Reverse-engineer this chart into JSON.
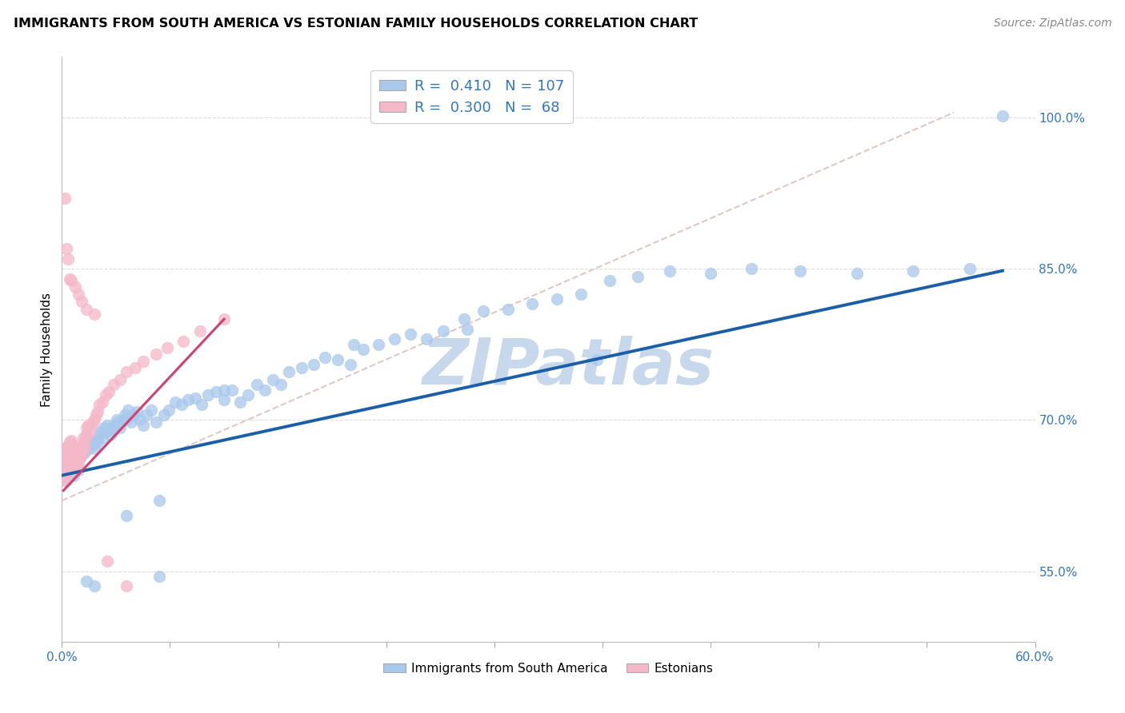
{
  "title": "IMMIGRANTS FROM SOUTH AMERICA VS ESTONIAN FAMILY HOUSEHOLDS CORRELATION CHART",
  "source": "Source: ZipAtlas.com",
  "xlim": [
    0.0,
    0.6
  ],
  "ylim": [
    0.48,
    1.06
  ],
  "r_blue": 0.41,
  "n_blue": 107,
  "r_pink": 0.3,
  "n_pink": 68,
  "blue_color": "#A8C8EC",
  "pink_color": "#F5B8C8",
  "trend_blue": "#1A5FA8",
  "trend_pink": "#D04070",
  "ref_line_color": "#E0C8C8",
  "watermark": "ZIPatlas",
  "watermark_color": "#C8D8EC",
  "legend_label_blue": "Immigrants from South America",
  "legend_label_pink": "Estonians",
  "ylabel_tick_values": [
    0.55,
    0.7,
    0.85,
    1.0
  ],
  "ylabel_ticks": [
    "55.0%",
    "70.0%",
    "85.0%",
    "100.0%"
  ],
  "blue_scatter_x": [
    0.001,
    0.002,
    0.003,
    0.003,
    0.004,
    0.005,
    0.005,
    0.006,
    0.007,
    0.007,
    0.008,
    0.009,
    0.01,
    0.01,
    0.011,
    0.012,
    0.013,
    0.014,
    0.015,
    0.015,
    0.016,
    0.017,
    0.018,
    0.019,
    0.02,
    0.021,
    0.022,
    0.023,
    0.024,
    0.025,
    0.026,
    0.027,
    0.028,
    0.029,
    0.03,
    0.031,
    0.032,
    0.033,
    0.034,
    0.035,
    0.036,
    0.038,
    0.039,
    0.04,
    0.041,
    0.043,
    0.044,
    0.046,
    0.048,
    0.05,
    0.052,
    0.055,
    0.058,
    0.06,
    0.063,
    0.066,
    0.07,
    0.074,
    0.078,
    0.082,
    0.086,
    0.09,
    0.095,
    0.1,
    0.105,
    0.11,
    0.115,
    0.12,
    0.125,
    0.13,
    0.135,
    0.14,
    0.148,
    0.155,
    0.162,
    0.17,
    0.178,
    0.186,
    0.195,
    0.205,
    0.215,
    0.225,
    0.235,
    0.248,
    0.26,
    0.275,
    0.29,
    0.305,
    0.32,
    0.338,
    0.355,
    0.375,
    0.4,
    0.425,
    0.455,
    0.49,
    0.525,
    0.56,
    0.33,
    0.25,
    0.18,
    0.1,
    0.06,
    0.04,
    0.02,
    0.015,
    0.58
  ],
  "blue_scatter_y": [
    0.66,
    0.65,
    0.665,
    0.64,
    0.655,
    0.66,
    0.648,
    0.662,
    0.658,
    0.645,
    0.67,
    0.655,
    0.668,
    0.65,
    0.672,
    0.665,
    0.67,
    0.668,
    0.675,
    0.685,
    0.672,
    0.678,
    0.68,
    0.675,
    0.672,
    0.68,
    0.678,
    0.685,
    0.688,
    0.682,
    0.692,
    0.688,
    0.695,
    0.69,
    0.685,
    0.692,
    0.69,
    0.695,
    0.7,
    0.698,
    0.692,
    0.7,
    0.705,
    0.7,
    0.71,
    0.698,
    0.705,
    0.708,
    0.7,
    0.695,
    0.705,
    0.71,
    0.698,
    0.62,
    0.705,
    0.71,
    0.718,
    0.715,
    0.72,
    0.722,
    0.715,
    0.725,
    0.728,
    0.72,
    0.73,
    0.718,
    0.725,
    0.735,
    0.73,
    0.74,
    0.735,
    0.748,
    0.752,
    0.755,
    0.762,
    0.76,
    0.755,
    0.77,
    0.775,
    0.78,
    0.785,
    0.78,
    0.788,
    0.8,
    0.808,
    0.81,
    0.815,
    0.82,
    0.825,
    0.838,
    0.842,
    0.848,
    0.845,
    0.85,
    0.848,
    0.845,
    0.848,
    0.85,
    0.76,
    0.79,
    0.775,
    0.73,
    0.545,
    0.605,
    0.535,
    0.54,
    1.002
  ],
  "pink_scatter_x": [
    0.001,
    0.001,
    0.001,
    0.002,
    0.002,
    0.002,
    0.002,
    0.002,
    0.003,
    0.003,
    0.003,
    0.003,
    0.004,
    0.004,
    0.004,
    0.004,
    0.005,
    0.005,
    0.005,
    0.005,
    0.006,
    0.006,
    0.006,
    0.006,
    0.007,
    0.007,
    0.007,
    0.007,
    0.008,
    0.008,
    0.008,
    0.009,
    0.009,
    0.009,
    0.01,
    0.01,
    0.01,
    0.011,
    0.011,
    0.012,
    0.012,
    0.013,
    0.013,
    0.014,
    0.014,
    0.015,
    0.015,
    0.016,
    0.017,
    0.018,
    0.019,
    0.02,
    0.021,
    0.022,
    0.023,
    0.025,
    0.027,
    0.029,
    0.032,
    0.036,
    0.04,
    0.045,
    0.05,
    0.058,
    0.065,
    0.075,
    0.085,
    0.1
  ],
  "pink_scatter_y": [
    0.648,
    0.658,
    0.665,
    0.64,
    0.65,
    0.66,
    0.668,
    0.672,
    0.645,
    0.655,
    0.662,
    0.67,
    0.65,
    0.66,
    0.668,
    0.675,
    0.655,
    0.662,
    0.67,
    0.678,
    0.658,
    0.665,
    0.672,
    0.68,
    0.65,
    0.66,
    0.668,
    0.675,
    0.655,
    0.665,
    0.672,
    0.658,
    0.665,
    0.672,
    0.655,
    0.662,
    0.67,
    0.662,
    0.67,
    0.665,
    0.672,
    0.675,
    0.682,
    0.672,
    0.68,
    0.685,
    0.692,
    0.695,
    0.688,
    0.695,
    0.698,
    0.7,
    0.705,
    0.708,
    0.715,
    0.718,
    0.725,
    0.728,
    0.735,
    0.74,
    0.748,
    0.752,
    0.758,
    0.765,
    0.772,
    0.778,
    0.788,
    0.8
  ],
  "extra_pink_x": [
    0.002,
    0.003,
    0.004,
    0.005,
    0.006,
    0.008,
    0.01,
    0.012,
    0.015,
    0.02,
    0.028,
    0.04
  ],
  "extra_pink_y": [
    0.92,
    0.87,
    0.86,
    0.84,
    0.838,
    0.832,
    0.825,
    0.818,
    0.81,
    0.805,
    0.56,
    0.535
  ],
  "blue_trend_x": [
    0.0,
    0.58
  ],
  "blue_trend_y": [
    0.645,
    0.848
  ],
  "pink_trend_x": [
    0.001,
    0.1
  ],
  "pink_trend_y": [
    0.63,
    0.8
  ],
  "ref_line_x": [
    0.0,
    0.55
  ],
  "ref_line_y": [
    0.62,
    1.005
  ]
}
